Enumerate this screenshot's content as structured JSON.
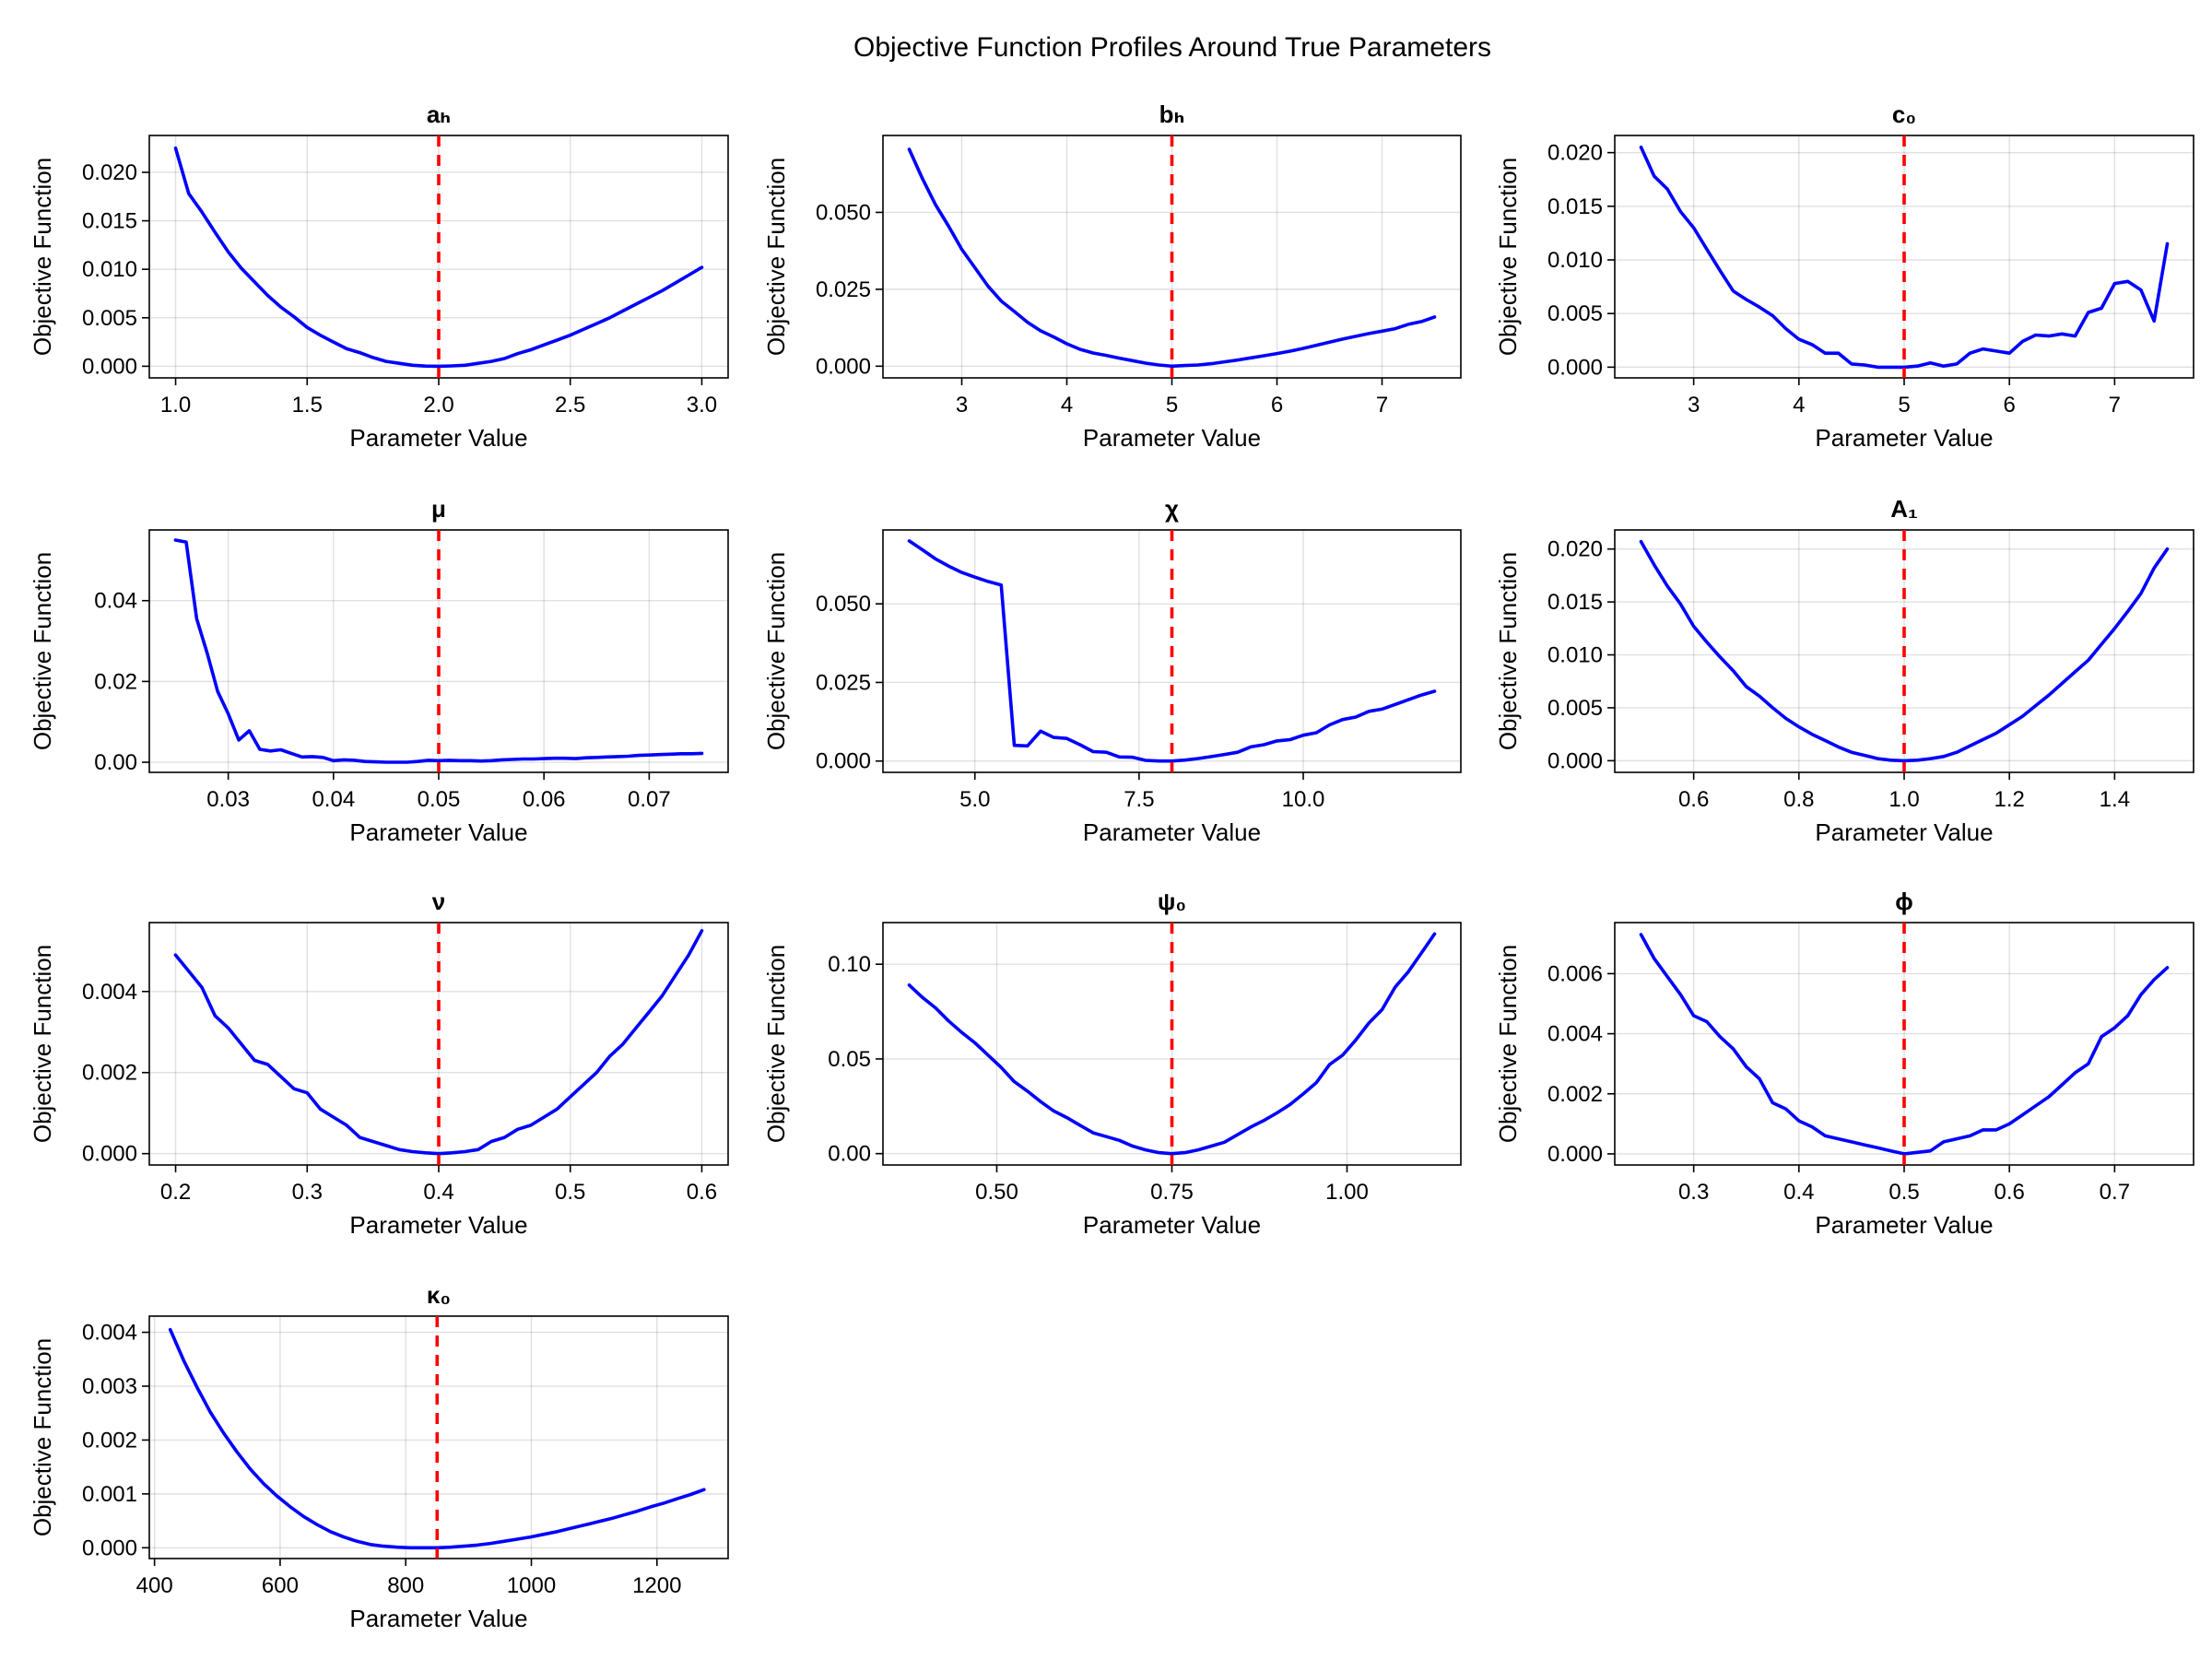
{
  "title": "Objective Function Profiles Around True Parameters",
  "colors": {
    "series": "#0000ff",
    "true_value_line": "#ff0000",
    "grid": "#e6e6e6",
    "background": "#ffffff"
  },
  "chart_data": [
    {
      "type": "line",
      "title": "aₕ",
      "xlabel": "Parameter Value",
      "ylabel": "Objective Function",
      "xlim": [
        0.9,
        3.1
      ],
      "ylim": [
        -0.0012,
        0.0238
      ],
      "grid": true,
      "xticks": [
        1.0,
        1.5,
        2.0,
        2.5,
        3.0
      ],
      "xtick_labels": [
        "1.0",
        "1.5",
        "2.0",
        "2.5",
        "3.0"
      ],
      "yticks": [
        0,
        0.005,
        0.01,
        0.015,
        0.02
      ],
      "ytick_labels": [
        "0.000",
        "0.005",
        "0.010",
        "0.015",
        "0.020"
      ],
      "true_value": 2.0,
      "x": [
        1.0,
        1.05,
        1.1,
        1.15,
        1.2,
        1.25,
        1.3,
        1.35,
        1.4,
        1.45,
        1.5,
        1.55,
        1.6,
        1.65,
        1.7,
        1.75,
        1.8,
        1.85,
        1.9,
        1.95,
        2.0,
        2.05,
        2.1,
        2.15,
        2.2,
        2.25,
        2.3,
        2.35,
        2.4,
        2.45,
        2.5,
        2.55,
        2.6,
        2.65,
        2.7,
        2.75,
        2.8,
        2.85,
        2.9,
        2.95,
        3.0
      ],
      "y": [
        0.0225,
        0.0178,
        0.0159,
        0.0138,
        0.0118,
        0.0101,
        0.0087,
        0.0073,
        0.0061,
        0.0051,
        0.004,
        0.0032,
        0.0025,
        0.0018,
        0.0014,
        0.0009,
        0.0005,
        0.0003,
        0.0001,
        2e-05,
        0.0,
        4e-05,
        0.0001,
        0.0003,
        0.0005,
        0.0008,
        0.0013,
        0.0017,
        0.0022,
        0.0027,
        0.0032,
        0.0038,
        0.0044,
        0.005,
        0.0057,
        0.0064,
        0.0071,
        0.0078,
        0.0086,
        0.0094,
        0.0102
      ]
    },
    {
      "type": "line",
      "title": "bₕ",
      "xlabel": "Parameter Value",
      "ylabel": "Objective Function",
      "xlim": [
        2.25,
        7.75
      ],
      "ylim": [
        -0.0038,
        0.075
      ],
      "grid": true,
      "xticks": [
        3,
        4,
        5,
        6,
        7
      ],
      "xtick_labels": [
        "3",
        "4",
        "5",
        "6",
        "7"
      ],
      "yticks": [
        0,
        0.025,
        0.05
      ],
      "ytick_labels": [
        "0.000",
        "0.025",
        "0.050"
      ],
      "true_value": 5.0,
      "x": [
        2.5,
        2.625,
        2.75,
        2.875,
        3.0,
        3.125,
        3.25,
        3.375,
        3.5,
        3.625,
        3.75,
        3.875,
        4.0,
        4.125,
        4.25,
        4.375,
        4.5,
        4.625,
        4.75,
        4.875,
        5.0,
        5.125,
        5.25,
        5.375,
        5.5,
        5.625,
        5.75,
        5.875,
        6.0,
        6.125,
        6.25,
        6.375,
        6.5,
        6.625,
        6.75,
        6.875,
        7.0,
        7.125,
        7.25,
        7.375,
        7.5
      ],
      "y": [
        0.0705,
        0.061,
        0.0525,
        0.0455,
        0.038,
        0.032,
        0.026,
        0.0212,
        0.0178,
        0.0143,
        0.0115,
        0.0095,
        0.0073,
        0.0055,
        0.0043,
        0.0035,
        0.0026,
        0.0018,
        0.001,
        0.0004,
        0.0,
        0.0002,
        0.0004,
        0.0008,
        0.0014,
        0.002,
        0.0027,
        0.0034,
        0.0041,
        0.0049,
        0.0058,
        0.0068,
        0.0078,
        0.0088,
        0.0097,
        0.0106,
        0.0114,
        0.0122,
        0.0136,
        0.0145,
        0.016
      ]
    },
    {
      "type": "line",
      "title": "c₀",
      "xlabel": "Parameter Value",
      "ylabel": "Objective Function",
      "xlim": [
        2.25,
        7.75
      ],
      "ylim": [
        -0.001,
        0.0216
      ],
      "grid": true,
      "xticks": [
        3,
        4,
        5,
        6,
        7
      ],
      "xtick_labels": [
        "3",
        "4",
        "5",
        "6",
        "7"
      ],
      "yticks": [
        0,
        0.005,
        0.01,
        0.015,
        0.02
      ],
      "ytick_labels": [
        "0.000",
        "0.005",
        "0.010",
        "0.015",
        "0.020"
      ],
      "true_value": 5.0,
      "x": [
        2.5,
        2.625,
        2.75,
        2.875,
        3.0,
        3.125,
        3.25,
        3.375,
        3.5,
        3.625,
        3.75,
        3.875,
        4.0,
        4.125,
        4.25,
        4.375,
        4.5,
        4.625,
        4.75,
        4.875,
        5.0,
        5.125,
        5.25,
        5.375,
        5.5,
        5.625,
        5.75,
        5.875,
        6.0,
        6.125,
        6.25,
        6.375,
        6.5,
        6.625,
        6.75,
        6.875,
        7.0,
        7.125,
        7.25,
        7.375,
        7.5
      ],
      "y": [
        0.0205,
        0.0178,
        0.0166,
        0.0145,
        0.013,
        0.011,
        0.009,
        0.0071,
        0.0063,
        0.0056,
        0.0048,
        0.0036,
        0.0026,
        0.0021,
        0.0013,
        0.0013,
        0.0003,
        0.0002,
        0.0,
        0.0,
        0.0,
        0.0001,
        0.0004,
        0.0001,
        0.0003,
        0.0013,
        0.0017,
        0.0015,
        0.0013,
        0.0024,
        0.003,
        0.0029,
        0.0031,
        0.0029,
        0.0051,
        0.0055,
        0.0078,
        0.008,
        0.0072,
        0.0043,
        0.0115
      ]
    },
    {
      "type": "line",
      "title": "μ",
      "xlabel": "Parameter Value",
      "ylabel": "Objective Function",
      "xlim": [
        0.0225,
        0.0775
      ],
      "ylim": [
        -0.0025,
        0.0575
      ],
      "grid": true,
      "xticks": [
        0.03,
        0.04,
        0.05,
        0.06,
        0.07
      ],
      "xtick_labels": [
        "0.03",
        "0.04",
        "0.05",
        "0.06",
        "0.07"
      ],
      "yticks": [
        0,
        0.02,
        0.04
      ],
      "ytick_labels": [
        "0.00",
        "0.02",
        "0.04"
      ],
      "true_value": 0.05,
      "x": [
        0.025,
        0.026,
        0.027,
        0.028,
        0.029,
        0.03,
        0.031,
        0.032,
        0.033,
        0.034,
        0.035,
        0.036,
        0.037,
        0.038,
        0.039,
        0.04,
        0.041,
        0.042,
        0.043,
        0.044,
        0.045,
        0.046,
        0.047,
        0.048,
        0.049,
        0.05,
        0.051,
        0.052,
        0.053,
        0.054,
        0.055,
        0.056,
        0.057,
        0.058,
        0.059,
        0.06,
        0.061,
        0.062,
        0.063,
        0.064,
        0.065,
        0.066,
        0.067,
        0.068,
        0.069,
        0.07,
        0.071,
        0.072,
        0.073,
        0.074,
        0.075
      ],
      "y": [
        0.055,
        0.0545,
        0.0355,
        0.027,
        0.0175,
        0.012,
        0.0055,
        0.0078,
        0.0032,
        0.0028,
        0.0031,
        0.0022,
        0.0013,
        0.0014,
        0.0012,
        0.0004,
        0.0006,
        0.0005,
        0.0002,
        0.0001,
        0.0,
        0.0,
        0.0,
        0.0002,
        0.0005,
        0.0004,
        0.0005,
        0.0004,
        0.0004,
        0.0003,
        0.0004,
        0.0006,
        0.0007,
        0.0008,
        0.0008,
        0.0009,
        0.001,
        0.001,
        0.0009,
        0.0011,
        0.0012,
        0.0013,
        0.0014,
        0.0015,
        0.0017,
        0.0018,
        0.0019,
        0.002,
        0.0021,
        0.0021,
        0.0022
      ]
    },
    {
      "type": "line",
      "title": "χ",
      "xlabel": "Parameter Value",
      "ylabel": "Objective Function",
      "xlim": [
        3.6,
        12.4
      ],
      "ylim": [
        -0.0036,
        0.0735
      ],
      "grid": true,
      "xticks": [
        5.0,
        7.5,
        10.0
      ],
      "xtick_labels": [
        "5.0",
        "7.5",
        "10.0"
      ],
      "yticks": [
        0,
        0.025,
        0.05
      ],
      "ytick_labels": [
        "0.000",
        "0.025",
        "0.050"
      ],
      "true_value": 8.0,
      "x": [
        4.0,
        4.2,
        4.4,
        4.6,
        4.8,
        5.0,
        5.2,
        5.4,
        5.6,
        5.8,
        6.0,
        6.2,
        6.4,
        6.6,
        6.8,
        7.0,
        7.2,
        7.4,
        7.6,
        7.8,
        8.0,
        8.2,
        8.4,
        8.6,
        8.8,
        9.0,
        9.2,
        9.4,
        9.6,
        9.8,
        10.0,
        10.2,
        10.4,
        10.6,
        10.8,
        11.0,
        11.2,
        11.4,
        11.6,
        11.8,
        12.0
      ],
      "y": [
        0.07,
        0.0672,
        0.0643,
        0.062,
        0.06,
        0.0585,
        0.0571,
        0.056,
        0.005,
        0.0048,
        0.0095,
        0.0075,
        0.0072,
        0.0052,
        0.003,
        0.0028,
        0.0013,
        0.0012,
        0.0002,
        0.0,
        0.0,
        0.0003,
        0.0008,
        0.0014,
        0.0021,
        0.0028,
        0.0045,
        0.0052,
        0.0064,
        0.0068,
        0.0082,
        0.009,
        0.0115,
        0.0132,
        0.014,
        0.0158,
        0.0165,
        0.018,
        0.0195,
        0.021,
        0.0222
      ]
    },
    {
      "type": "line",
      "title": "A₁",
      "xlabel": "Parameter Value",
      "ylabel": "Objective Function",
      "xlim": [
        0.45,
        1.55
      ],
      "ylim": [
        -0.0011,
        0.0218
      ],
      "grid": true,
      "xticks": [
        0.6,
        0.8,
        1.0,
        1.2,
        1.4
      ],
      "xtick_labels": [
        "0.6",
        "0.8",
        "1.0",
        "1.2",
        "1.4"
      ],
      "yticks": [
        0,
        0.005,
        0.01,
        0.015,
        0.02
      ],
      "ytick_labels": [
        "0.000",
        "0.005",
        "0.010",
        "0.015",
        "0.020"
      ],
      "true_value": 1.0,
      "x": [
        0.5,
        0.525,
        0.55,
        0.575,
        0.6,
        0.625,
        0.65,
        0.675,
        0.7,
        0.725,
        0.75,
        0.775,
        0.8,
        0.825,
        0.85,
        0.875,
        0.9,
        0.925,
        0.95,
        0.975,
        1.0,
        1.025,
        1.05,
        1.075,
        1.1,
        1.125,
        1.15,
        1.175,
        1.2,
        1.225,
        1.25,
        1.275,
        1.3,
        1.325,
        1.35,
        1.375,
        1.4,
        1.425,
        1.45,
        1.475,
        1.5
      ],
      "y": [
        0.0207,
        0.0185,
        0.0165,
        0.0148,
        0.0127,
        0.0112,
        0.0098,
        0.0085,
        0.007,
        0.0061,
        0.005,
        0.004,
        0.0032,
        0.0025,
        0.0019,
        0.0013,
        0.0008,
        0.0005,
        0.0002,
        5e-05,
        0.0,
        5e-05,
        0.0002,
        0.0004,
        0.0008,
        0.0014,
        0.002,
        0.0026,
        0.0034,
        0.0042,
        0.0052,
        0.0062,
        0.0073,
        0.0084,
        0.0095,
        0.011,
        0.0125,
        0.0141,
        0.0158,
        0.0182,
        0.02
      ]
    },
    {
      "type": "line",
      "title": "ν",
      "xlabel": "Parameter Value",
      "ylabel": "Objective Function",
      "xlim": [
        0.18,
        0.62
      ],
      "ylim": [
        -0.00028,
        0.0057
      ],
      "grid": true,
      "xticks": [
        0.2,
        0.3,
        0.4,
        0.5,
        0.6
      ],
      "xtick_labels": [
        "0.2",
        "0.3",
        "0.4",
        "0.5",
        "0.6"
      ],
      "yticks": [
        0,
        0.002,
        0.004
      ],
      "ytick_labels": [
        "0.000",
        "0.002",
        "0.004"
      ],
      "true_value": 0.4,
      "x": [
        0.2,
        0.21,
        0.22,
        0.23,
        0.24,
        0.25,
        0.26,
        0.27,
        0.28,
        0.29,
        0.3,
        0.31,
        0.32,
        0.33,
        0.34,
        0.35,
        0.36,
        0.37,
        0.38,
        0.39,
        0.4,
        0.41,
        0.42,
        0.43,
        0.44,
        0.45,
        0.46,
        0.47,
        0.48,
        0.49,
        0.5,
        0.51,
        0.52,
        0.53,
        0.54,
        0.55,
        0.56,
        0.57,
        0.58,
        0.59,
        0.6
      ],
      "y": [
        0.0049,
        0.0045,
        0.0041,
        0.0034,
        0.0031,
        0.0027,
        0.0023,
        0.0022,
        0.0019,
        0.0016,
        0.0015,
        0.0011,
        0.0009,
        0.0007,
        0.0004,
        0.0003,
        0.0002,
        0.0001,
        5e-05,
        2e-05,
        0.0,
        2e-05,
        5e-05,
        0.0001,
        0.0003,
        0.0004,
        0.0006,
        0.0007,
        0.0009,
        0.0011,
        0.0014,
        0.0017,
        0.002,
        0.0024,
        0.0027,
        0.0031,
        0.0035,
        0.0039,
        0.0044,
        0.0049,
        0.0055
      ]
    },
    {
      "type": "line",
      "title": "ψ₀",
      "xlabel": "Parameter Value",
      "ylabel": "Objective Function",
      "xlim": [
        0.3375,
        1.1625
      ],
      "ylim": [
        -0.006,
        0.122
      ],
      "grid": true,
      "xticks": [
        0.5,
        0.75,
        1.0
      ],
      "xtick_labels": [
        "0.50",
        "0.75",
        "1.00"
      ],
      "yticks": [
        0,
        0.05,
        0.1
      ],
      "ytick_labels": [
        "0.00",
        "0.05",
        "0.10"
      ],
      "true_value": 0.75,
      "x": [
        0.375,
        0.39375,
        0.4125,
        0.43125,
        0.45,
        0.46875,
        0.4875,
        0.50625,
        0.525,
        0.54375,
        0.5625,
        0.58125,
        0.6,
        0.61875,
        0.6375,
        0.65625,
        0.675,
        0.69375,
        0.7125,
        0.73125,
        0.75,
        0.76875,
        0.7875,
        0.80625,
        0.825,
        0.84375,
        0.8625,
        0.88125,
        0.9,
        0.91875,
        0.9375,
        0.95625,
        0.975,
        0.99375,
        1.0125,
        1.03125,
        1.05,
        1.06875,
        1.0875,
        1.10625,
        1.125
      ],
      "y": [
        0.089,
        0.0825,
        0.077,
        0.07,
        0.064,
        0.0585,
        0.052,
        0.0455,
        0.038,
        0.033,
        0.0275,
        0.0225,
        0.019,
        0.015,
        0.011,
        0.009,
        0.007,
        0.004,
        0.002,
        0.0005,
        0.0,
        0.0005,
        0.002,
        0.004,
        0.006,
        0.01,
        0.014,
        0.0175,
        0.0215,
        0.026,
        0.0315,
        0.0375,
        0.047,
        0.052,
        0.06,
        0.069,
        0.076,
        0.088,
        0.096,
        0.106,
        0.116
      ]
    },
    {
      "type": "line",
      "title": "ϕ",
      "xlabel": "Parameter Value",
      "ylabel": "Objective Function",
      "xlim": [
        0.225,
        0.775
      ],
      "ylim": [
        -0.00037,
        0.0077
      ],
      "grid": true,
      "xticks": [
        0.3,
        0.4,
        0.5,
        0.6,
        0.7
      ],
      "xtick_labels": [
        "0.3",
        "0.4",
        "0.5",
        "0.6",
        "0.7"
      ],
      "yticks": [
        0,
        0.002,
        0.004,
        0.006
      ],
      "ytick_labels": [
        "0.000",
        "0.002",
        "0.004",
        "0.006"
      ],
      "true_value": 0.5,
      "x": [
        0.25,
        0.2625,
        0.275,
        0.2875,
        0.3,
        0.3125,
        0.325,
        0.3375,
        0.35,
        0.3625,
        0.375,
        0.3875,
        0.4,
        0.4125,
        0.425,
        0.4375,
        0.45,
        0.4625,
        0.475,
        0.4875,
        0.5,
        0.5125,
        0.525,
        0.5375,
        0.55,
        0.5625,
        0.575,
        0.5875,
        0.6,
        0.6125,
        0.625,
        0.6375,
        0.65,
        0.6625,
        0.675,
        0.6875,
        0.7,
        0.7125,
        0.725,
        0.7375,
        0.75
      ],
      "y": [
        0.0073,
        0.0065,
        0.0059,
        0.0053,
        0.0046,
        0.0044,
        0.0039,
        0.0035,
        0.0029,
        0.0025,
        0.0017,
        0.0015,
        0.0011,
        0.0009,
        0.0006,
        0.0005,
        0.0004,
        0.0003,
        0.0002,
        0.0001,
        0.0,
        5e-05,
        0.0001,
        0.0004,
        0.0005,
        0.0006,
        0.0008,
        0.0008,
        0.001,
        0.0013,
        0.0016,
        0.0019,
        0.0023,
        0.0027,
        0.003,
        0.0039,
        0.0042,
        0.0046,
        0.0053,
        0.0058,
        0.0062
      ]
    },
    {
      "type": "line",
      "title": "κ₀",
      "xlabel": "Parameter Value",
      "ylabel": "Objective Function",
      "xlim": [
        391.7,
        1313.3
      ],
      "ylim": [
        -0.0002,
        0.0043
      ],
      "grid": true,
      "xticks": [
        400,
        600,
        800,
        1000,
        1200
      ],
      "xtick_labels": [
        "400",
        "600",
        "800",
        "1000",
        "1200"
      ],
      "yticks": [
        0,
        0.001,
        0.002,
        0.003,
        0.004
      ],
      "ytick_labels": [
        "0.000",
        "0.001",
        "0.002",
        "0.003",
        "0.004"
      ],
      "true_value": 850,
      "x": [
        425,
        446.25,
        467.5,
        488.75,
        510,
        531.25,
        552.5,
        573.75,
        595,
        616.25,
        637.5,
        658.75,
        680,
        701.25,
        722.5,
        743.75,
        765,
        786.25,
        807.5,
        828.75,
        850,
        871.25,
        892.5,
        913.75,
        935,
        956.25,
        977.5,
        998.75,
        1020,
        1041.25,
        1062.5,
        1083.75,
        1105,
        1126.25,
        1147.5,
        1168.75,
        1190,
        1211.25,
        1232.5,
        1253.75,
        1275
      ],
      "y": [
        0.00405,
        0.00348,
        0.00298,
        0.00252,
        0.00213,
        0.00178,
        0.00146,
        0.00119,
        0.00096,
        0.00076,
        0.00058,
        0.00043,
        0.0003,
        0.0002,
        0.00012,
        6e-05,
        3e-05,
        1e-05,
        0.0,
        0.0,
        0.0,
        1e-05,
        3e-05,
        5e-05,
        8e-05,
        0.00012,
        0.00016,
        0.0002,
        0.00025,
        0.0003,
        0.00036,
        0.00042,
        0.00048,
        0.00054,
        0.00061,
        0.00068,
        0.00076,
        0.00083,
        0.00091,
        0.00099,
        0.00108
      ]
    }
  ]
}
